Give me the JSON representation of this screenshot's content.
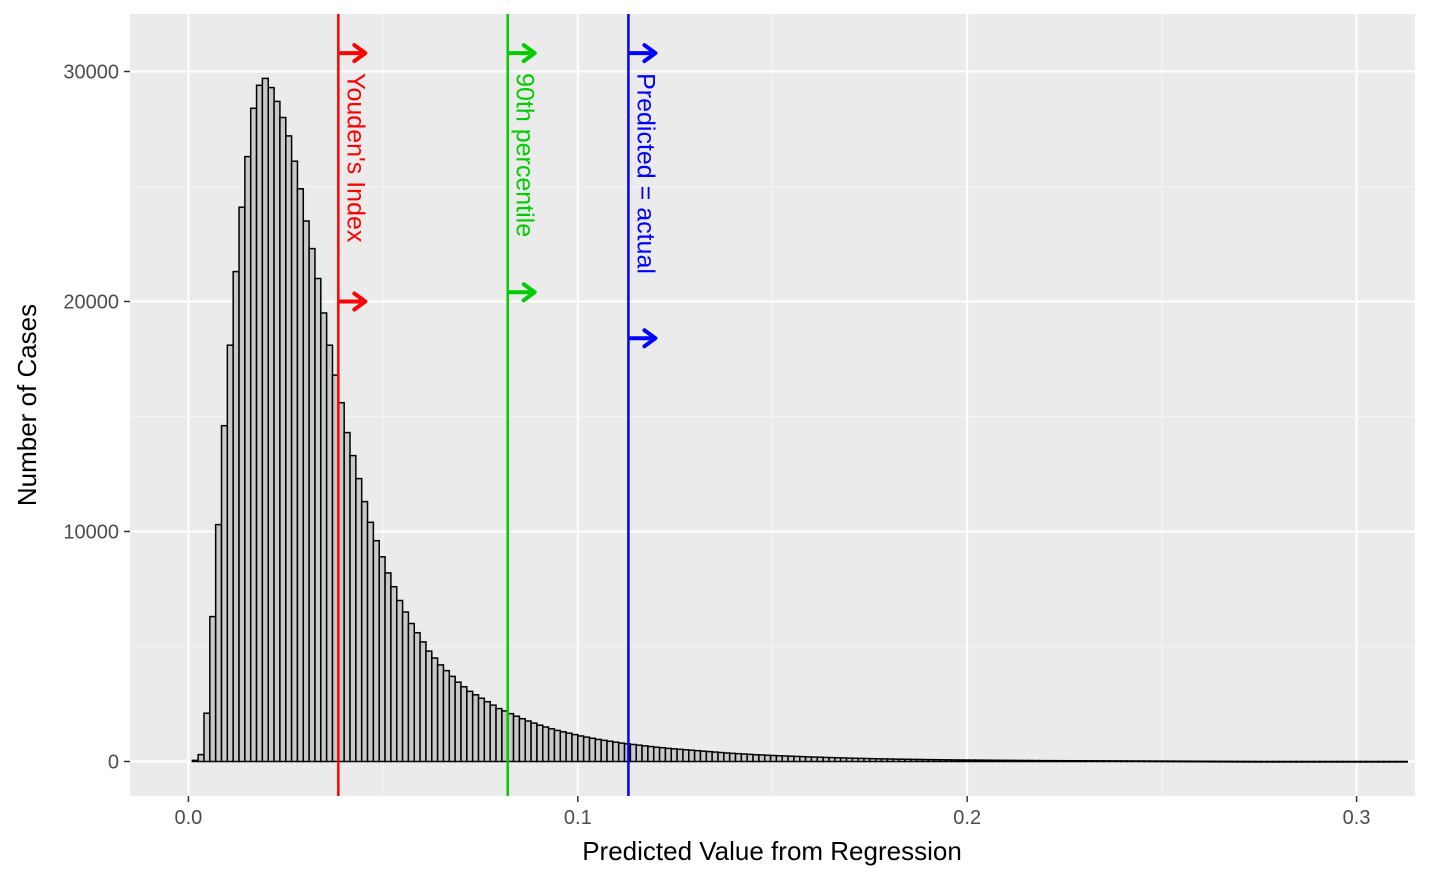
{
  "chart_data": {
    "type": "bar",
    "subtype": "histogram",
    "xlabel": "Predicted Value from Regression",
    "ylabel": "Number of Cases",
    "xlim": [
      -0.015,
      0.315
    ],
    "ylim": [
      -1500,
      32500
    ],
    "x_ticks": [
      {
        "value": 0.0,
        "label": "0.0"
      },
      {
        "value": 0.1,
        "label": "0.1"
      },
      {
        "value": 0.2,
        "label": "0.2"
      },
      {
        "value": 0.3,
        "label": "0.3"
      }
    ],
    "y_ticks": [
      {
        "value": 0,
        "label": "0"
      },
      {
        "value": 10000,
        "label": "10000"
      },
      {
        "value": 20000,
        "label": "20000"
      },
      {
        "value": 30000,
        "label": "30000"
      }
    ],
    "grid": true,
    "bin_start": 0.001,
    "bin_width": 0.0015,
    "bin_counts": [
      50,
      300,
      2100,
      6300,
      10300,
      14600,
      18100,
      21300,
      24100,
      26300,
      28400,
      29400,
      29700,
      29300,
      28700,
      28000,
      27200,
      26100,
      24900,
      23500,
      22300,
      21000,
      19500,
      18100,
      16800,
      15600,
      14300,
      13300,
      12300,
      11300,
      10400,
      9600,
      8900,
      8200,
      7600,
      7000,
      6500,
      6000,
      5600,
      5200,
      4800,
      4500,
      4200,
      3950,
      3700,
      3450,
      3250,
      3050,
      2900,
      2750,
      2600,
      2450,
      2300,
      2200,
      2080,
      1970,
      1860,
      1760,
      1670,
      1580,
      1500,
      1420,
      1350,
      1290,
      1230,
      1170,
      1110,
      1060,
      1010,
      960,
      920,
      880,
      840,
      800,
      770,
      740,
      710,
      680,
      650,
      620,
      600,
      570,
      550,
      530,
      510,
      490,
      470,
      450,
      430,
      410,
      390,
      370,
      355,
      340,
      325,
      310,
      295,
      285,
      270,
      260,
      250,
      240,
      230,
      220,
      210,
      200,
      192,
      184,
      176,
      168,
      160,
      153,
      146,
      140,
      134,
      128,
      122,
      117,
      112,
      107,
      103,
      99,
      95,
      91,
      87,
      84,
      81,
      78,
      75,
      72,
      69,
      66,
      64,
      62,
      60,
      58,
      56,
      54,
      52,
      50,
      48,
      46,
      44,
      42,
      40,
      38,
      37,
      36,
      35,
      34,
      33,
      32,
      31,
      30,
      29,
      28,
      27,
      26,
      25,
      24,
      23,
      22,
      21,
      20,
      19,
      18,
      17,
      16,
      15,
      14,
      13,
      12,
      11,
      10,
      9,
      8,
      7,
      6,
      5,
      4,
      3,
      2,
      1,
      1,
      1,
      1,
      1,
      1,
      1,
      1,
      1,
      1,
      1,
      1,
      1,
      1,
      1,
      1,
      1,
      1,
      1,
      1,
      1,
      1,
      1,
      1,
      1,
      1
    ],
    "bar_fill": "#c8c8c8",
    "bar_outline": "#000000",
    "vlines": [
      {
        "label": "Youden's Index",
        "x": 0.0385,
        "color": "#ff0000",
        "arrows_y": [
          30800,
          20000
        ]
      },
      {
        "label": "90th percentile",
        "x": 0.082,
        "color": "#00cc00",
        "arrows_y": [
          30800,
          20400
        ]
      },
      {
        "label": "Predicted = actual",
        "x": 0.113,
        "color": "#0000ff",
        "arrows_y": [
          30800,
          18400
        ]
      }
    ]
  },
  "colors": {
    "panel_background": "#ebebeb",
    "grid_major": "#ffffff",
    "grid_minor": "#f5f5f5"
  }
}
